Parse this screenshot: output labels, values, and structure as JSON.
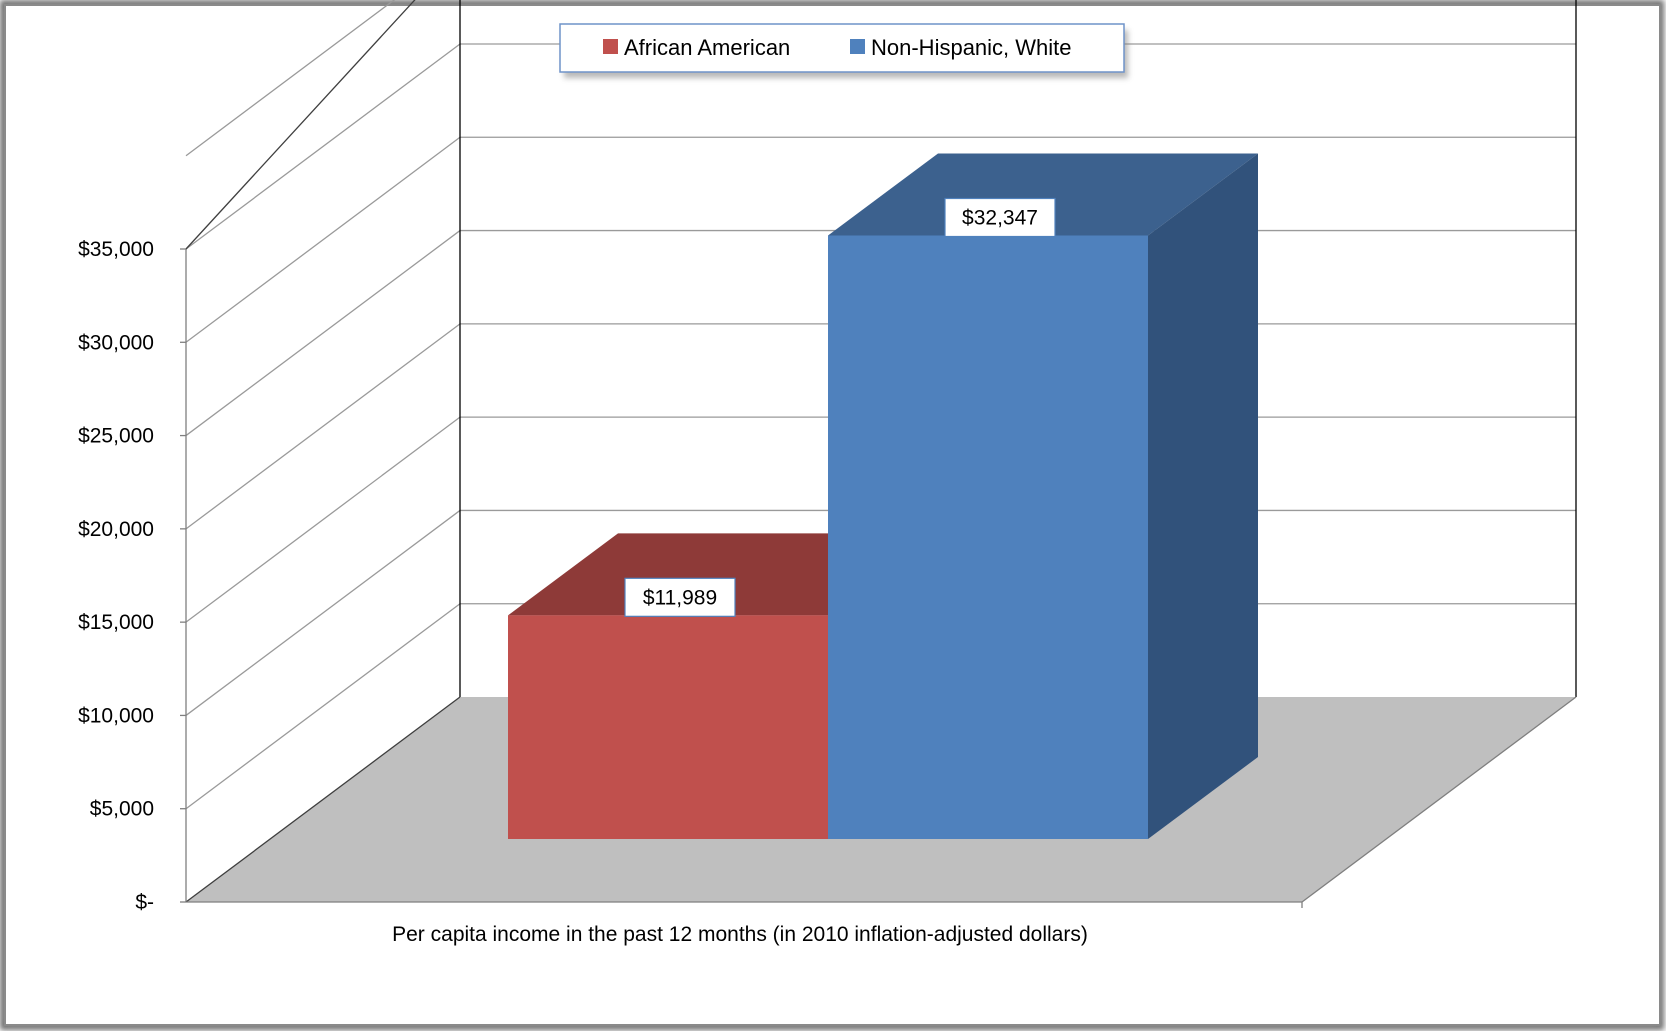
{
  "chart_data": {
    "type": "bar",
    "style": "3d-column",
    "categories": [
      "Per capita income in the past 12 months (in 2010 inflation-adjusted dollars)"
    ],
    "series": [
      {
        "name": "African American",
        "values": [
          11989
        ],
        "data_label": "$11,989",
        "color": "#C0504D",
        "top_color": "#8E3A38"
      },
      {
        "name": "Non-Hispanic, White",
        "values": [
          32347
        ],
        "data_label": "$32,347",
        "color": "#4F81BD",
        "top_color": "#3C618E",
        "side_color": "#31527B"
      }
    ],
    "title": "",
    "xlabel": "Per capita income in the past 12 months (in 2010 inflation-adjusted dollars)",
    "ylabel": "",
    "ylim": [
      0,
      35000
    ],
    "yticks": [
      0,
      5000,
      10000,
      15000,
      20000,
      25000,
      30000,
      35000
    ],
    "ytick_labels": [
      "$-",
      "$5,000",
      "$10,000",
      "$15,000",
      "$20,000",
      "$25,000",
      "$30,000",
      "$35,000"
    ],
    "grid": true,
    "legend_position": "top-center",
    "colors": {
      "frame_border": "#7F7F7F",
      "floor": "#BFBFBF",
      "grid": "#9A9A9A",
      "back_wall_line": "#000000"
    }
  }
}
